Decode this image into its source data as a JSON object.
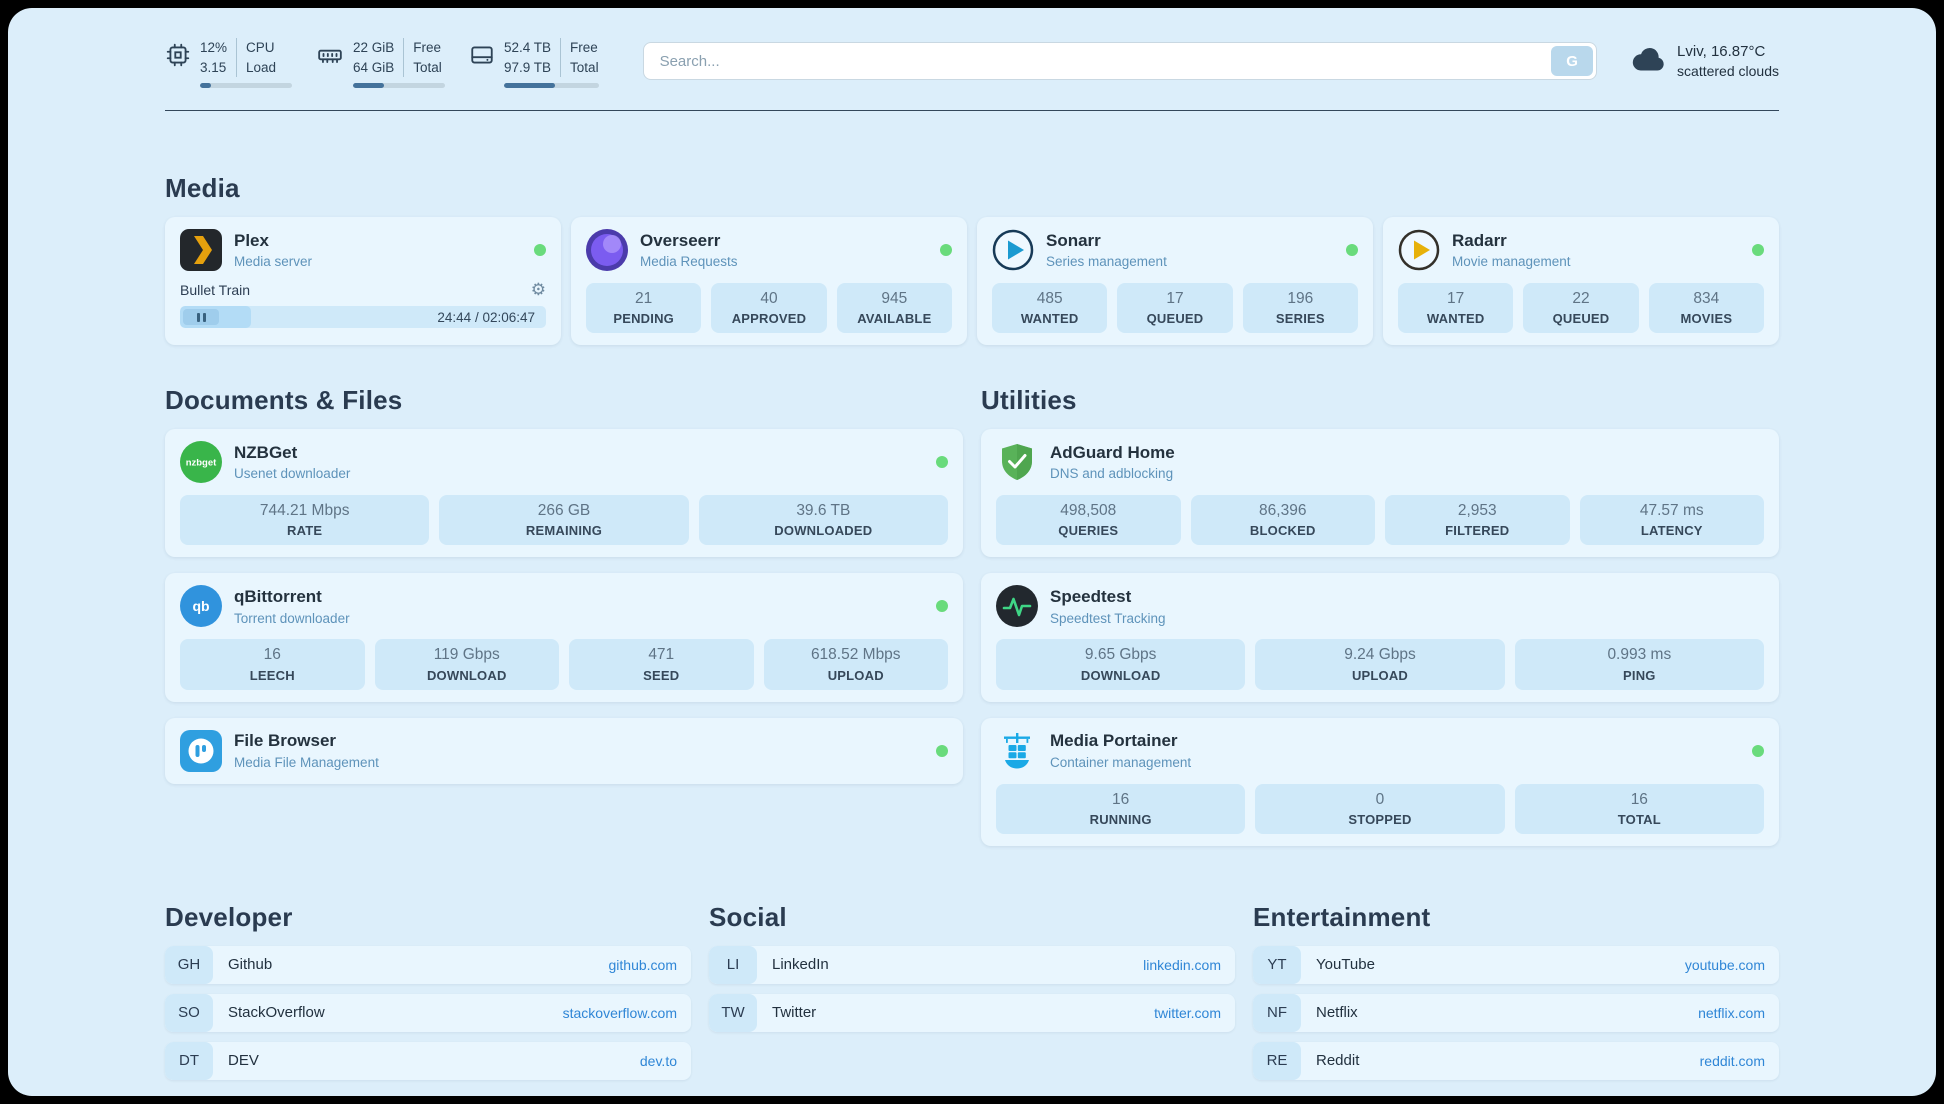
{
  "header": {
    "cpu": {
      "value_top": "12%",
      "value_bottom": "3.15",
      "label_top": "CPU",
      "label_bottom": "Load",
      "bar_percent": 12
    },
    "ram": {
      "value_top": "22 GiB",
      "value_bottom": "64 GiB",
      "label_top": "Free",
      "label_bottom": "Total",
      "bar_percent": 34
    },
    "disk": {
      "value_top": "52.4 TB",
      "value_bottom": "97.9 TB",
      "label_top": "Free",
      "label_bottom": "Total",
      "bar_percent": 54
    },
    "search": {
      "placeholder": "Search...",
      "button_label": "G"
    },
    "weather": {
      "location": "Lviv, 16.87°C",
      "condition": "scattered clouds"
    }
  },
  "colors": {
    "page_bg": "#dceefa",
    "card_bg": "#e9f6fe",
    "chip_bg": "#cfe9f9",
    "status_green": "#69db7c",
    "link_blue": "#2f86d6"
  },
  "media": {
    "title": "Media",
    "plex": {
      "name": "Plex",
      "subtitle": "Media server",
      "icon": "plex-icon",
      "now_playing": "Bullet Train",
      "time": "24:44 / 02:06:47",
      "progress_percent": 19.5
    },
    "apps": [
      {
        "name": "Overseerr",
        "subtitle": "Media Requests",
        "icon": "overseerr-icon",
        "stats": [
          {
            "value": "21",
            "label": "PENDING"
          },
          {
            "value": "40",
            "label": "APPROVED"
          },
          {
            "value": "945",
            "label": "AVAILABLE"
          }
        ]
      },
      {
        "name": "Sonarr",
        "subtitle": "Series management",
        "icon": "sonarr-icon",
        "stats": [
          {
            "value": "485",
            "label": "WANTED"
          },
          {
            "value": "17",
            "label": "QUEUED"
          },
          {
            "value": "196",
            "label": "SERIES"
          }
        ]
      },
      {
        "name": "Radarr",
        "subtitle": "Movie management",
        "icon": "radarr-icon",
        "stats": [
          {
            "value": "17",
            "label": "WANTED"
          },
          {
            "value": "22",
            "label": "QUEUED"
          },
          {
            "value": "834",
            "label": "MOVIES"
          }
        ]
      }
    ]
  },
  "documents": {
    "title": "Documents & Files",
    "apps": [
      {
        "name": "NZBGet",
        "subtitle": "Usenet downloader",
        "icon": "nzbget-icon",
        "stats": [
          {
            "value": "744.21 Mbps",
            "label": "RATE"
          },
          {
            "value": "266 GB",
            "label": "REMAINING"
          },
          {
            "value": "39.6 TB",
            "label": "DOWNLOADED"
          }
        ]
      },
      {
        "name": "qBittorrent",
        "subtitle": "Torrent downloader",
        "icon": "qbittorrent-icon",
        "stats": [
          {
            "value": "16",
            "label": "LEECH"
          },
          {
            "value": "119 Gbps",
            "label": "DOWNLOAD"
          },
          {
            "value": "471",
            "label": "SEED"
          },
          {
            "value": "618.52 Mbps",
            "label": "UPLOAD"
          }
        ]
      },
      {
        "name": "File Browser",
        "subtitle": "Media File Management",
        "icon": "filebrowser-icon",
        "stats": []
      }
    ]
  },
  "utilities": {
    "title": "Utilities",
    "apps": [
      {
        "name": "AdGuard Home",
        "subtitle": "DNS and adblocking",
        "icon": "adguard-icon",
        "stats": [
          {
            "value": "498,508",
            "label": "QUERIES"
          },
          {
            "value": "86,396",
            "label": "BLOCKED"
          },
          {
            "value": "2,953",
            "label": "FILTERED"
          },
          {
            "value": "47.57 ms",
            "label": "LATENCY"
          }
        ]
      },
      {
        "name": "Speedtest",
        "subtitle": "Speedtest Tracking",
        "icon": "speedtest-icon",
        "stats": [
          {
            "value": "9.65 Gbps",
            "label": "DOWNLOAD"
          },
          {
            "value": "9.24 Gbps",
            "label": "UPLOAD"
          },
          {
            "value": "0.993 ms",
            "label": "PING"
          }
        ]
      },
      {
        "name": "Media Portainer",
        "subtitle": "Container management",
        "icon": "portainer-icon",
        "stats": [
          {
            "value": "16",
            "label": "RUNNING"
          },
          {
            "value": "0",
            "label": "STOPPED"
          },
          {
            "value": "16",
            "label": "TOTAL"
          }
        ]
      }
    ]
  },
  "bookmarks": [
    {
      "title": "Developer",
      "items": [
        {
          "abbr": "GH",
          "name": "Github",
          "link": "github.com"
        },
        {
          "abbr": "SO",
          "name": "StackOverflow",
          "link": "stackoverflow.com"
        },
        {
          "abbr": "DT",
          "name": "DEV",
          "link": "dev.to"
        }
      ]
    },
    {
      "title": "Social",
      "items": [
        {
          "abbr": "LI",
          "name": "LinkedIn",
          "link": "linkedin.com"
        },
        {
          "abbr": "TW",
          "name": "Twitter",
          "link": "twitter.com"
        }
      ]
    },
    {
      "title": "Entertainment",
      "items": [
        {
          "abbr": "YT",
          "name": "YouTube",
          "link": "youtube.com"
        },
        {
          "abbr": "NF",
          "name": "Netflix",
          "link": "netflix.com"
        },
        {
          "abbr": "RE",
          "name": "Reddit",
          "link": "reddit.com"
        }
      ]
    }
  ]
}
